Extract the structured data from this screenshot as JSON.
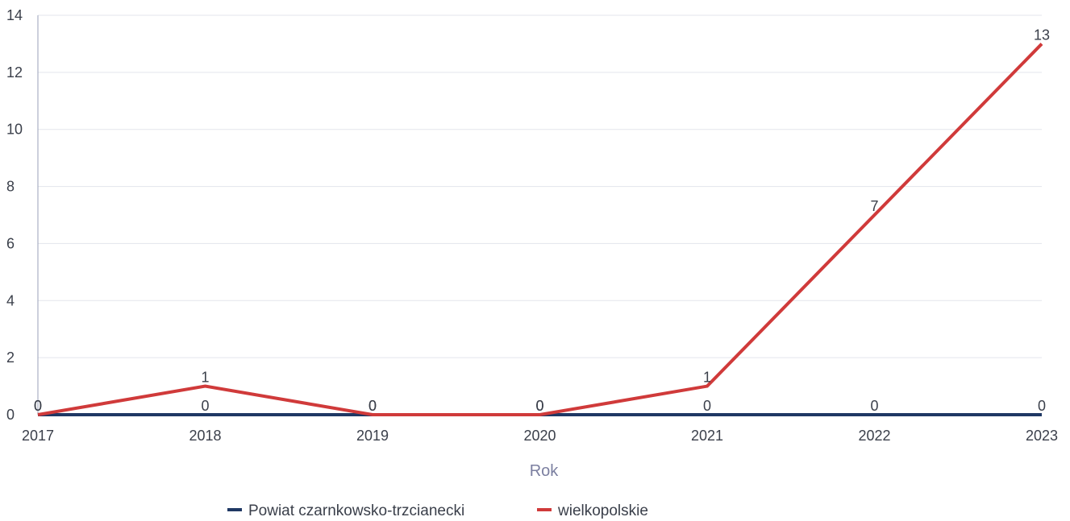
{
  "chart_data": {
    "type": "line",
    "title": "",
    "xlabel": "Rok",
    "ylabel": "",
    "x": [
      "2017",
      "2018",
      "2019",
      "2020",
      "2021",
      "2022",
      "2023"
    ],
    "ylim": [
      0,
      14
    ],
    "yticks": [
      "0",
      "2",
      "4",
      "6",
      "8",
      "10",
      "12",
      "14"
    ],
    "grid": true,
    "legend_position": "bottom",
    "series": [
      {
        "name": "Powiat czarnkowsko-trzcianecki",
        "color": "#1f3864",
        "values": [
          0,
          0,
          0,
          0,
          0,
          0,
          0
        ]
      },
      {
        "name": "wielkopolskie",
        "color": "#d03a3a",
        "values": [
          0,
          1,
          0,
          0,
          1,
          7,
          13
        ]
      }
    ]
  }
}
